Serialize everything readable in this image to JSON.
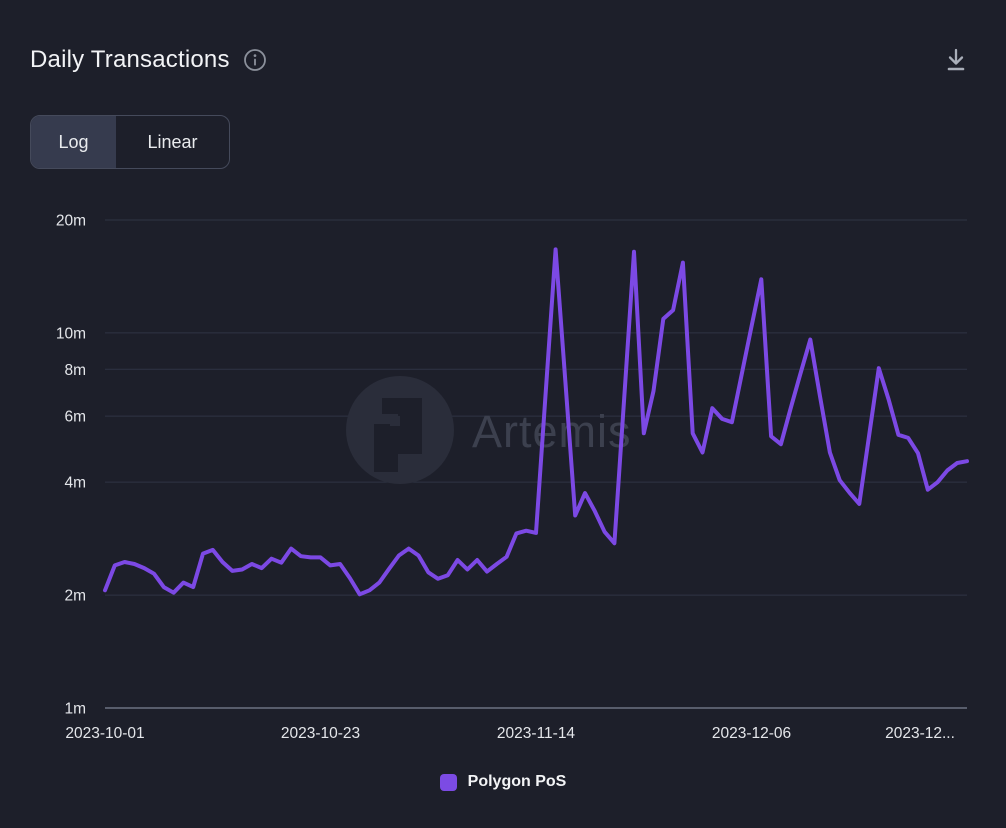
{
  "header": {
    "title": "Daily Transactions"
  },
  "toggle": {
    "options": [
      {
        "label": "Log",
        "active": true
      },
      {
        "label": "Linear",
        "active": false
      }
    ]
  },
  "watermark": {
    "text": "Artemis"
  },
  "legend": {
    "items": [
      {
        "label": "Polygon PoS",
        "color": "#7c4be4"
      }
    ]
  },
  "colors": {
    "background": "#1d1f2a",
    "line": "#7c49e4",
    "gridline": "#2f3444",
    "axis_line": "#585d6c",
    "tick_text": "#e4e6ea",
    "toggle_active_bg": "#363b4e",
    "toggle_border": "#454a5b"
  },
  "chart_data": {
    "type": "line",
    "title": "Daily Transactions",
    "x_axis": {
      "start_date": "2023-10-01",
      "interval_days": 1,
      "tick_labels": [
        "2023-10-01",
        "2023-10-23",
        "2023-11-14",
        "2023-12-06",
        "2023-12..."
      ],
      "tick_indices": [
        0,
        22,
        44,
        66,
        88
      ]
    },
    "y_axis": {
      "scale": "log",
      "unit": "m",
      "tick_labels": [
        "20m",
        "10m",
        "8m",
        "6m",
        "4m",
        "2m",
        "1m"
      ],
      "tick_values": [
        20,
        10,
        8,
        6,
        4,
        2,
        1
      ],
      "ylim": [
        1,
        20
      ]
    },
    "grid": true,
    "legend_position": "bottom",
    "series": [
      {
        "name": "Polygon PoS",
        "color": "#7c49e4",
        "values_unit": "millions",
        "values": [
          2.06,
          2.4,
          2.45,
          2.42,
          2.36,
          2.28,
          2.1,
          2.03,
          2.16,
          2.1,
          2.58,
          2.64,
          2.45,
          2.32,
          2.34,
          2.42,
          2.36,
          2.5,
          2.44,
          2.66,
          2.54,
          2.52,
          2.52,
          2.4,
          2.42,
          2.22,
          2.01,
          2.06,
          2.16,
          2.35,
          2.55,
          2.66,
          2.55,
          2.3,
          2.21,
          2.26,
          2.48,
          2.34,
          2.48,
          2.31,
          2.42,
          2.53,
          2.92,
          2.97,
          2.93,
          7.0,
          16.7,
          7.4,
          3.26,
          3.74,
          3.35,
          2.95,
          2.75,
          6.7,
          16.45,
          5.4,
          7.0,
          10.9,
          11.5,
          15.4,
          5.4,
          4.8,
          6.3,
          5.9,
          5.78,
          7.75,
          10.4,
          13.9,
          5.3,
          5.05,
          6.3,
          7.8,
          9.6,
          6.75,
          4.8,
          4.05,
          3.75,
          3.5,
          5.3,
          8.05,
          6.65,
          5.35,
          5.25,
          4.78,
          3.82,
          4.0,
          4.3,
          4.5,
          4.55
        ]
      }
    ]
  }
}
